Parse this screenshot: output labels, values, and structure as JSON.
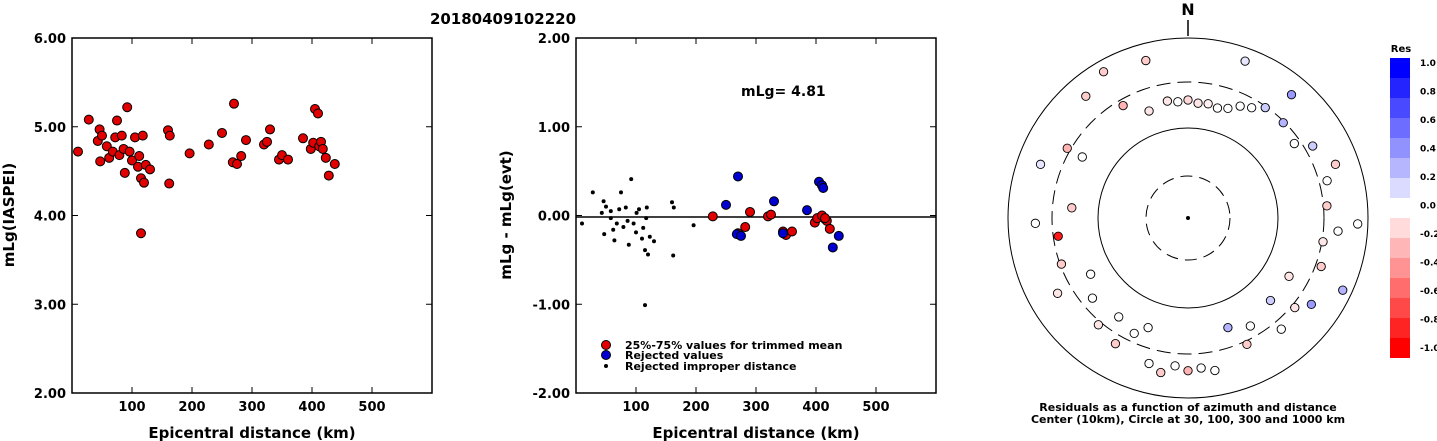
{
  "event_id": "20180409102220",
  "chart_data": [
    {
      "type": "scatter",
      "title": "",
      "xlabel": "Epicentral distance (km)",
      "ylabel": "mLg(IASPEI)",
      "xlim": [
        0,
        600
      ],
      "ylim": [
        2.0,
        6.0
      ],
      "x_ticks": [
        100,
        200,
        300,
        400,
        500
      ],
      "x_tick_labels": [
        "100",
        "200",
        "300",
        "400",
        "500"
      ],
      "y_ticks": [
        2,
        3,
        4,
        5,
        6
      ],
      "y_tick_labels": [
        "2.00",
        "3.00",
        "4.00",
        "5.00",
        "6.00"
      ],
      "series": [
        {
          "color": "#e00000",
          "points": [
            [
              10,
              4.72
            ],
            [
              28,
              5.08
            ],
            [
              43,
              4.84
            ],
            [
              46,
              4.97
            ],
            [
              50,
              4.9
            ],
            [
              47,
              4.61
            ],
            [
              58,
              4.78
            ],
            [
              62,
              4.65
            ],
            [
              68,
              4.72
            ],
            [
              72,
              4.88
            ],
            [
              75,
              5.07
            ],
            [
              79,
              4.68
            ],
            [
              83,
              4.9
            ],
            [
              86,
              4.75
            ],
            [
              88,
              4.48
            ],
            [
              92,
              5.22
            ],
            [
              96,
              4.72
            ],
            [
              100,
              4.62
            ],
            [
              105,
              4.88
            ],
            [
              110,
              4.55
            ],
            [
              112,
              4.67
            ],
            [
              115,
              4.42
            ],
            [
              118,
              4.9
            ],
            [
              120,
              4.37
            ],
            [
              115,
              3.8
            ],
            [
              123,
              4.57
            ],
            [
              130,
              4.52
            ],
            [
              160,
              4.96
            ],
            [
              163,
              4.9
            ],
            [
              162,
              4.36
            ],
            [
              196,
              4.7
            ],
            [
              228,
              4.8
            ],
            [
              250,
              4.93
            ],
            [
              268,
              4.6
            ],
            [
              270,
              5.26
            ],
            [
              275,
              4.58
            ],
            [
              282,
              4.67
            ],
            [
              290,
              4.85
            ],
            [
              320,
              4.8
            ],
            [
              325,
              4.83
            ],
            [
              330,
              4.97
            ],
            [
              345,
              4.63
            ],
            [
              350,
              4.68
            ],
            [
              360,
              4.63
            ],
            [
              385,
              4.87
            ],
            [
              398,
              4.75
            ],
            [
              402,
              4.82
            ],
            [
              405,
              5.2
            ],
            [
              410,
              5.15
            ],
            [
              412,
              4.78
            ],
            [
              415,
              4.83
            ],
            [
              418,
              4.75
            ],
            [
              423,
              4.65
            ],
            [
              428,
              4.45
            ],
            [
              438,
              4.58
            ]
          ]
        }
      ]
    },
    {
      "type": "scatter",
      "title": "",
      "xlabel": "Epicentral distance (km)",
      "ylabel": "mLg - mLg(evt)",
      "xlim": [
        0,
        600
      ],
      "ylim": [
        -2.0,
        2.0
      ],
      "x_ticks": [
        100,
        200,
        300,
        400,
        500
      ],
      "x_tick_labels": [
        "100",
        "200",
        "300",
        "400",
        "500"
      ],
      "y_ticks": [
        -2,
        -1,
        0,
        1,
        2
      ],
      "y_tick_labels": [
        "-2.00",
        "-1.00",
        "0.00",
        "1.00",
        "2.00"
      ],
      "annotation": "mLg= 4.81",
      "legend": [
        "25%-75% values for trimmed mean",
        "Rejected values",
        "Rejected improper distance"
      ],
      "series": [
        {
          "name": "25%-75% values for trimmed mean",
          "color": "#e00000",
          "points": [
            [
              228,
              -0.01
            ],
            [
              270,
              -0.2
            ],
            [
              282,
              -0.13
            ],
            [
              290,
              0.04
            ],
            [
              320,
              -0.01
            ],
            [
              325,
              0.01
            ],
            [
              345,
              -0.18
            ],
            [
              350,
              -0.22
            ],
            [
              360,
              -0.18
            ],
            [
              398,
              -0.08
            ],
            [
              402,
              -0.03
            ],
            [
              410,
              0.0
            ],
            [
              415,
              -0.04
            ],
            [
              418,
              -0.06
            ],
            [
              423,
              -0.15
            ],
            [
              415,
              -0.03
            ]
          ]
        },
        {
          "name": "Rejected values",
          "color": "#0000d0",
          "points": [
            [
              250,
              0.12
            ],
            [
              268,
              -0.21
            ],
            [
              270,
              0.44
            ],
            [
              275,
              -0.23
            ],
            [
              330,
              0.16
            ],
            [
              345,
              -0.2
            ],
            [
              385,
              0.06
            ],
            [
              405,
              0.38
            ],
            [
              410,
              0.34
            ],
            [
              412,
              0.31
            ],
            [
              428,
              -0.36
            ],
            [
              438,
              -0.23
            ]
          ]
        },
        {
          "name": "Rejected improper distance",
          "color": "#000000",
          "points": [
            [
              10,
              -0.09
            ],
            [
              28,
              0.26
            ],
            [
              43,
              0.03
            ],
            [
              46,
              0.16
            ],
            [
              50,
              0.1
            ],
            [
              47,
              -0.21
            ],
            [
              58,
              -0.03
            ],
            [
              62,
              -0.16
            ],
            [
              68,
              -0.09
            ],
            [
              72,
              0.07
            ],
            [
              75,
              0.26
            ],
            [
              79,
              -0.13
            ],
            [
              83,
              0.09
            ],
            [
              86,
              -0.06
            ],
            [
              88,
              -0.33
            ],
            [
              92,
              0.41
            ],
            [
              96,
              -0.09
            ],
            [
              100,
              -0.19
            ],
            [
              105,
              0.07
            ],
            [
              110,
              -0.26
            ],
            [
              112,
              -0.14
            ],
            [
              115,
              -0.39
            ],
            [
              118,
              0.09
            ],
            [
              120,
              -0.44
            ],
            [
              115,
              -1.01
            ],
            [
              123,
              -0.24
            ],
            [
              130,
              -0.29
            ],
            [
              160,
              0.15
            ],
            [
              163,
              0.09
            ],
            [
              162,
              -0.45
            ],
            [
              196,
              -0.11
            ],
            [
              58,
              0.05
            ],
            [
              64,
              -0.28
            ],
            [
              101,
              0.03
            ],
            [
              117,
              -0.03
            ]
          ]
        }
      ]
    },
    {
      "type": "scatter",
      "title": "",
      "north_label": "N",
      "caption_line1": "Residuals as a function of azimuth and distance",
      "caption_line2": "Center (10km), Circle at 30, 100, 300 and 1000 km",
      "colorbar_title": "Res",
      "colorbar_ticks": [
        "1.0",
        "0.8",
        "0.6",
        "0.4",
        "0.2",
        "0.0",
        "-0.2",
        "-0.4",
        "-0.6",
        "-0.8",
        "-1.0"
      ],
      "circles_km": [
        30,
        100,
        300,
        1000
      ],
      "circle_styles": [
        "dashed",
        "solid",
        "dashed",
        "solid"
      ],
      "points_az_dist_res": [
        [
          355,
          420,
          0.0
        ],
        [
          5,
          410,
          -0.1
        ],
        [
          10,
          415,
          -0.05
        ],
        [
          0,
          430,
          -0.15
        ],
        [
          350,
          435,
          -0.1
        ],
        [
          15,
          400,
          0.0
        ],
        [
          340,
          400,
          -0.1
        ],
        [
          20,
          420,
          0.0
        ],
        [
          25,
          470,
          0.0
        ],
        [
          30,
          500,
          0.0
        ],
        [
          35,
          560,
          0.2
        ],
        [
          330,
          520,
          -0.3
        ],
        [
          320,
          780,
          -0.2
        ],
        [
          300,
          600,
          -0.3
        ],
        [
          290,
          760,
          0.1
        ],
        [
          275,
          420,
          -0.2
        ],
        [
          268,
          720,
          0.0
        ],
        [
          262,
          530,
          -0.9
        ],
        [
          250,
          560,
          -0.2
        ],
        [
          240,
          700,
          -0.1
        ],
        [
          230,
          480,
          0.0
        ],
        [
          220,
          600,
          -0.1
        ],
        [
          210,
          650,
          -0.2
        ],
        [
          200,
          420,
          0.0
        ],
        [
          195,
          700,
          0.0
        ],
        [
          190,
          760,
          -0.2
        ],
        [
          185,
          680,
          0.0
        ],
        [
          180,
          720,
          -0.3
        ],
        [
          175,
          700,
          0.0
        ],
        [
          170,
          740,
          0.0
        ],
        [
          160,
          420,
          0.3
        ],
        [
          155,
          600,
          -0.2
        ],
        [
          150,
          480,
          0.0
        ],
        [
          140,
          650,
          0.0
        ],
        [
          130,
          600,
          -0.1
        ],
        [
          125,
          700,
          0.4
        ],
        [
          115,
          900,
          0.3
        ],
        [
          110,
          620,
          -0.2
        ],
        [
          100,
          580,
          -0.1
        ],
        [
          95,
          700,
          0.0
        ],
        [
          92,
          890,
          0.0
        ],
        [
          85,
          600,
          -0.2
        ],
        [
          75,
          640,
          0.0
        ],
        [
          70,
          760,
          -0.2
        ],
        [
          60,
          640,
          0.2
        ],
        [
          55,
          520,
          0.0
        ],
        [
          45,
          560,
          0.3
        ],
        [
          40,
          800,
          0.4
        ],
        [
          20,
          860,
          0.1
        ],
        [
          300,
          460,
          0.0
        ],
        [
          330,
          880,
          -0.2
        ],
        [
          345,
          820,
          -0.2
        ],
        [
          240,
          390,
          0.0
        ],
        [
          135,
          420,
          0.2
        ],
        [
          120,
          420,
          -0.1
        ],
        [
          205,
          500,
          0.0
        ],
        [
          215,
          450,
          0.0
        ]
      ]
    }
  ]
}
